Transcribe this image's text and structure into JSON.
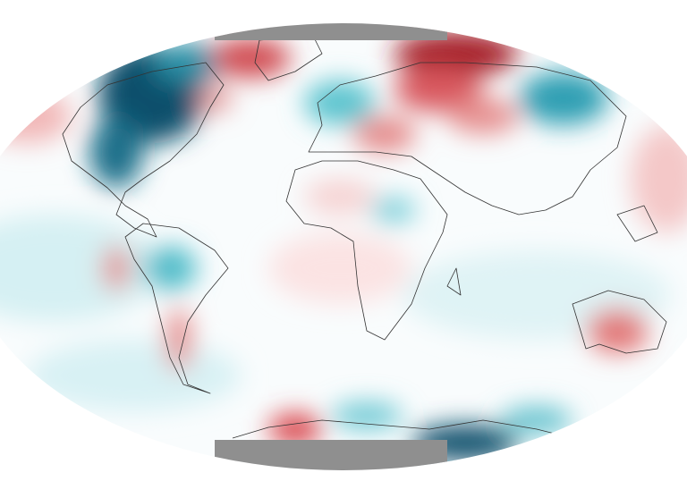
{
  "map": {
    "colors": {
      "background": "#ffffff",
      "ocean_base": "#f7fbfc",
      "polar_cap": "#8f8f8f",
      "warm_light": "#f4c4c4",
      "warm": "#e07070",
      "warm_dark": "#a51c26",
      "cool_light": "#bfe8ee",
      "cool": "#3fb5c4",
      "cool_dark": "#0b4f6c",
      "coastline": "#333333"
    },
    "anomalies": [
      {
        "region": "north-america-central",
        "sign": "cool",
        "strength": "strong"
      },
      {
        "region": "greenland-east",
        "sign": "warm",
        "strength": "strong"
      },
      {
        "region": "barents-siberia",
        "sign": "warm",
        "strength": "strong"
      },
      {
        "region": "eastern-siberia",
        "sign": "cool",
        "strength": "medium"
      },
      {
        "region": "western-europe",
        "sign": "cool",
        "strength": "medium"
      },
      {
        "region": "balkans",
        "sign": "warm",
        "strength": "medium"
      },
      {
        "region": "australia",
        "sign": "warm",
        "strength": "medium"
      },
      {
        "region": "antarctic-peninsula",
        "sign": "warm",
        "strength": "medium"
      },
      {
        "region": "southern-ocean-east",
        "sign": "cool",
        "strength": "strong"
      },
      {
        "region": "south-america",
        "sign": "cool",
        "strength": "medium"
      }
    ]
  }
}
